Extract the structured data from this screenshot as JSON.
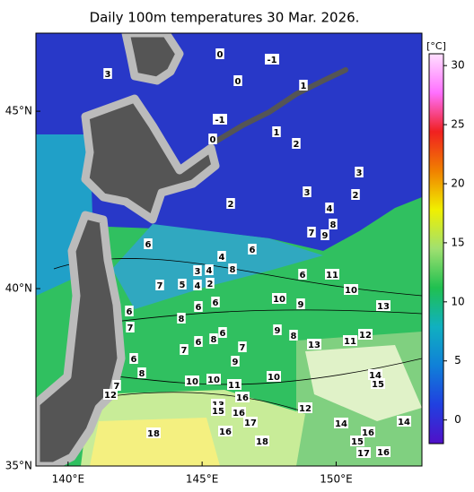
{
  "title": "Daily 100m temperatures 30 Mar. 2026.",
  "map": {
    "lonlim": [
      138.8,
      153.2
    ],
    "latlim": [
      35,
      47.2
    ],
    "lon_ticks": [
      {
        "value": 140,
        "label": "140°E"
      },
      {
        "value": 145,
        "label": "145°E"
      },
      {
        "value": 150,
        "label": "150°E"
      }
    ],
    "lat_ticks": [
      {
        "value": 35,
        "label": "35°N"
      },
      {
        "value": 40,
        "label": "40°N"
      },
      {
        "value": 45,
        "label": "45°N"
      }
    ],
    "contour_labels": [
      0,
      -1,
      3,
      0,
      1,
      -1,
      1,
      0,
      2,
      3,
      3,
      2,
      2,
      4,
      8,
      7,
      9,
      6,
      6,
      4,
      8,
      3,
      4,
      2,
      6,
      11,
      7,
      5,
      4,
      10,
      10,
      9,
      6,
      6,
      13,
      6,
      8,
      7,
      9,
      8,
      6,
      12,
      11,
      13,
      6,
      8,
      7,
      7,
      6,
      9,
      8,
      10,
      10,
      10,
      11,
      14,
      15,
      7,
      12,
      16,
      13,
      12,
      15,
      16,
      17,
      14,
      14,
      18,
      16,
      16,
      15,
      18,
      17,
      16
    ]
  },
  "colorbar": {
    "unit": "[°C]",
    "lim": [
      -2,
      31
    ],
    "ticks": [
      0,
      5,
      10,
      15,
      20,
      25,
      30
    ],
    "colors": [
      "#5010c8",
      "#2040e0",
      "#1080d8",
      "#10b0c0",
      "#20c050",
      "#a0e070",
      "#f0f000",
      "#f08000",
      "#f02020",
      "#ff70ff",
      "#ffe0ff"
    ]
  }
}
